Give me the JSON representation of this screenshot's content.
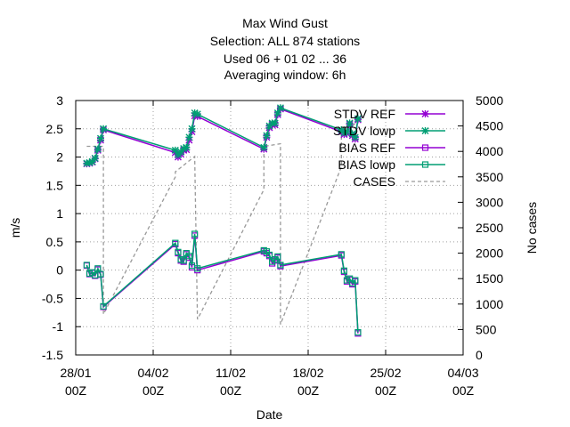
{
  "chart_data": {
    "type": "line",
    "title": [
      "Max Wind Gust",
      "Selection: ALL    874 stations",
      "Used  06  + 01 02 ... 36",
      "Averaging window:  6h"
    ],
    "xlabel": "Date",
    "ylabel": "m/s",
    "y2label": "No cases",
    "xlim": [
      "28/01 00Z",
      "04/03 00Z"
    ],
    "x_ticks": [
      "28/01\n00Z",
      "04/02\n00Z",
      "11/02\n00Z",
      "18/02\n00Z",
      "25/02\n00Z",
      "04/03\n00Z"
    ],
    "ylim": [
      -1.5,
      3
    ],
    "y_ticks": [
      "-1.5",
      "-1",
      "-0.5",
      "0",
      "0.5",
      "1",
      "1.5",
      "2",
      "2.5",
      "3"
    ],
    "y2lim": [
      0,
      5000
    ],
    "y2_ticks": [
      "0",
      "500",
      "1000",
      "1500",
      "2000",
      "2500",
      "3000",
      "3500",
      "4000",
      "4500",
      "5000"
    ],
    "grid": true,
    "legend_position": "top-right",
    "x_unit": "days since 28/01 00Z",
    "series": [
      {
        "name": "STDV REF",
        "axis": "y",
        "color": "#9400d3",
        "marker": "star",
        "x": [
          1.0,
          1.25,
          1.5,
          1.75,
          2.0,
          2.25,
          2.5,
          9.0,
          9.25,
          9.5,
          9.75,
          10.0,
          10.25,
          10.5,
          10.75,
          11.0,
          17.0,
          17.25,
          17.5,
          17.75,
          18.0,
          18.25,
          18.5,
          24.0,
          24.25,
          24.5,
          24.75,
          25.0,
          25.25,
          25.5
        ],
        "y": [
          1.88,
          1.89,
          1.91,
          1.97,
          2.12,
          2.3,
          2.48,
          2.08,
          2.0,
          2.05,
          2.12,
          2.13,
          2.3,
          2.45,
          2.73,
          2.72,
          2.14,
          2.35,
          2.52,
          2.58,
          2.57,
          2.75,
          2.85,
          2.45,
          2.4,
          2.42,
          2.58,
          2.38,
          2.32,
          2.66
        ]
      },
      {
        "name": "STDV lowp",
        "axis": "y",
        "color": "#009e73",
        "marker": "star",
        "x": [
          1.0,
          1.25,
          1.5,
          1.75,
          2.0,
          2.25,
          2.5,
          9.0,
          9.25,
          9.5,
          9.75,
          10.0,
          10.25,
          10.5,
          10.75,
          11.0,
          17.0,
          17.25,
          17.5,
          17.75,
          18.0,
          18.25,
          18.5,
          24.0,
          24.25,
          24.5,
          24.75,
          25.0,
          25.25,
          25.5
        ],
        "y": [
          1.89,
          1.9,
          1.92,
          1.98,
          2.14,
          2.33,
          2.5,
          2.12,
          2.04,
          2.09,
          2.15,
          2.17,
          2.35,
          2.5,
          2.78,
          2.76,
          2.17,
          2.38,
          2.55,
          2.6,
          2.6,
          2.78,
          2.87,
          2.48,
          2.43,
          2.45,
          2.6,
          2.41,
          2.35,
          2.68
        ]
      },
      {
        "name": "BIAS REF",
        "axis": "y",
        "color": "#9400d3",
        "marker": "square",
        "x": [
          1.0,
          1.25,
          1.5,
          1.75,
          2.0,
          2.25,
          2.5,
          9.0,
          9.25,
          9.5,
          9.75,
          10.0,
          10.25,
          10.5,
          10.75,
          11.0,
          17.0,
          17.25,
          17.5,
          17.75,
          18.0,
          18.25,
          18.5,
          24.0,
          24.25,
          24.5,
          24.75,
          25.0,
          25.25,
          25.5
        ],
        "y": [
          0.08,
          -0.07,
          -0.05,
          -0.1,
          0.01,
          -0.08,
          -0.65,
          0.46,
          0.3,
          0.17,
          0.15,
          0.28,
          0.22,
          0.05,
          0.61,
          0.0,
          0.33,
          0.3,
          0.25,
          0.12,
          0.17,
          0.22,
          0.07,
          0.26,
          -0.03,
          -0.2,
          -0.17,
          -0.25,
          -0.2,
          -1.12
        ]
      },
      {
        "name": "BIAS lowp",
        "axis": "y",
        "color": "#009e73",
        "marker": "square",
        "x": [
          1.0,
          1.25,
          1.5,
          1.75,
          2.0,
          2.25,
          2.5,
          9.0,
          9.25,
          9.5,
          9.75,
          10.0,
          10.25,
          10.5,
          10.75,
          11.0,
          17.0,
          17.25,
          17.5,
          17.75,
          18.0,
          18.25,
          18.5,
          24.0,
          24.25,
          24.5,
          24.75,
          25.0,
          25.25,
          25.5
        ],
        "y": [
          0.09,
          -0.06,
          -0.04,
          -0.09,
          0.03,
          -0.07,
          -0.64,
          0.48,
          0.32,
          0.19,
          0.17,
          0.3,
          0.25,
          0.08,
          0.64,
          0.03,
          0.35,
          0.33,
          0.27,
          0.15,
          0.19,
          0.24,
          0.09,
          0.28,
          -0.01,
          -0.18,
          -0.15,
          -0.23,
          -0.18,
          -1.1
        ]
      },
      {
        "name": "CASES",
        "axis": "y2",
        "color": "#999999",
        "marker": "none",
        "dash": true,
        "x": [
          1.0,
          2.5,
          2.5,
          9.0,
          9.0,
          10.75,
          11.0,
          17.0,
          17.0,
          18.5,
          18.5,
          24.0,
          24.0,
          25.5,
          25.5
        ],
        "y": [
          4100,
          4100,
          800,
          3500,
          3600,
          3900,
          700,
          3250,
          4100,
          4150,
          600,
          3700,
          4300,
          4600,
          4800
        ]
      }
    ]
  }
}
